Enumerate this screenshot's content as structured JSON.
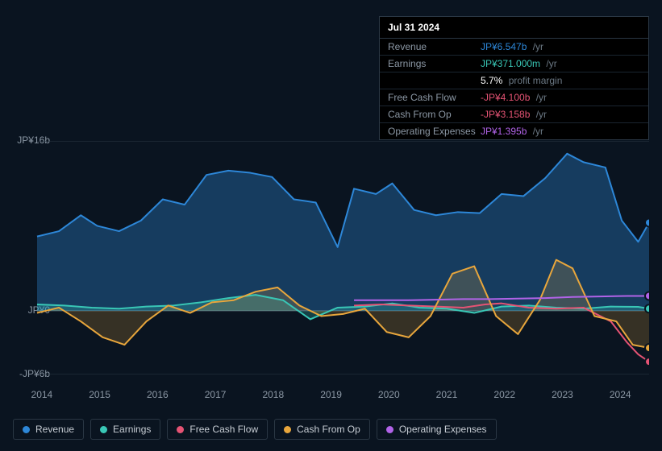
{
  "tooltip": {
    "date": "Jul 31 2024",
    "rows": [
      {
        "label": "Revenue",
        "value": "JP¥6.547b",
        "suffix": "/yr",
        "color": "#2d87d8"
      },
      {
        "label": "Earnings",
        "value": "JP¥371.000m",
        "suffix": "/yr",
        "color": "#39c7b6"
      },
      {
        "label": "",
        "value": "5.7%",
        "suffix": "profit margin",
        "color": "#ffffff"
      },
      {
        "label": "Free Cash Flow",
        "value": "-JP¥4.100b",
        "suffix": "/yr",
        "color": "#e55374"
      },
      {
        "label": "Cash From Op",
        "value": "-JP¥3.158b",
        "suffix": "/yr",
        "color": "#e55374"
      },
      {
        "label": "Operating Expenses",
        "value": "JP¥1.395b",
        "suffix": "/yr",
        "color": "#b163e8"
      }
    ]
  },
  "chart": {
    "type": "line-area",
    "background": "#0a1420",
    "grid_color": "#2a3744",
    "zero_line_color": "#5a6875",
    "ylim": [
      -6,
      16
    ],
    "y_ticks": [
      {
        "v": 16,
        "label": "JP¥16b"
      },
      {
        "v": 0,
        "label": "JP¥0"
      },
      {
        "v": -6,
        "label": "-JP¥6b"
      }
    ],
    "x_labels": [
      "2014",
      "2015",
      "2016",
      "2017",
      "2018",
      "2019",
      "2020",
      "2021",
      "2022",
      "2023",
      "2024"
    ],
    "x_start": 2013.5,
    "x_end": 2024.7,
    "series": [
      {
        "name": "Revenue",
        "color": "#2d87d8",
        "fill": true,
        "fill_opacity": 0.35,
        "data": [
          [
            2013.5,
            7.0
          ],
          [
            2013.9,
            7.5
          ],
          [
            2014.3,
            9.0
          ],
          [
            2014.6,
            8.0
          ],
          [
            2015.0,
            7.5
          ],
          [
            2015.4,
            8.5
          ],
          [
            2015.8,
            10.5
          ],
          [
            2016.2,
            10.0
          ],
          [
            2016.6,
            12.8
          ],
          [
            2017.0,
            13.2
          ],
          [
            2017.4,
            13.0
          ],
          [
            2017.8,
            12.6
          ],
          [
            2018.2,
            10.5
          ],
          [
            2018.6,
            10.2
          ],
          [
            2019.0,
            6.0
          ],
          [
            2019.3,
            11.5
          ],
          [
            2019.7,
            11.0
          ],
          [
            2020.0,
            12.0
          ],
          [
            2020.4,
            9.5
          ],
          [
            2020.8,
            9.0
          ],
          [
            2021.2,
            9.3
          ],
          [
            2021.6,
            9.2
          ],
          [
            2022.0,
            11.0
          ],
          [
            2022.4,
            10.8
          ],
          [
            2022.8,
            12.5
          ],
          [
            2023.2,
            14.8
          ],
          [
            2023.5,
            14.0
          ],
          [
            2023.9,
            13.5
          ],
          [
            2024.2,
            8.5
          ],
          [
            2024.5,
            6.5
          ],
          [
            2024.7,
            8.3
          ]
        ],
        "end_marker": 8.3
      },
      {
        "name": "Earnings",
        "color": "#39c7b6",
        "fill": true,
        "fill_opacity": 0.25,
        "data": [
          [
            2013.5,
            0.6
          ],
          [
            2014.0,
            0.5
          ],
          [
            2014.5,
            0.3
          ],
          [
            2015.0,
            0.2
          ],
          [
            2015.5,
            0.4
          ],
          [
            2016.0,
            0.5
          ],
          [
            2016.5,
            0.8
          ],
          [
            2017.0,
            1.2
          ],
          [
            2017.5,
            1.5
          ],
          [
            2018.0,
            1.0
          ],
          [
            2018.5,
            -0.8
          ],
          [
            2019.0,
            0.3
          ],
          [
            2019.5,
            0.4
          ],
          [
            2020.0,
            0.7
          ],
          [
            2020.5,
            0.3
          ],
          [
            2021.0,
            0.2
          ],
          [
            2021.5,
            -0.2
          ],
          [
            2022.0,
            0.4
          ],
          [
            2022.5,
            0.5
          ],
          [
            2023.0,
            0.3
          ],
          [
            2023.5,
            0.2
          ],
          [
            2024.0,
            0.4
          ],
          [
            2024.5,
            0.37
          ],
          [
            2024.7,
            0.2
          ]
        ],
        "end_marker": 0.2
      },
      {
        "name": "Free Cash Flow",
        "color": "#e55374",
        "fill": false,
        "data": [
          [
            2019.3,
            0.5
          ],
          [
            2019.8,
            0.6
          ],
          [
            2020.3,
            0.5
          ],
          [
            2020.8,
            0.4
          ],
          [
            2021.3,
            0.3
          ],
          [
            2021.7,
            0.6
          ],
          [
            2022.0,
            0.7
          ],
          [
            2022.5,
            0.3
          ],
          [
            2023.0,
            0.2
          ],
          [
            2023.5,
            0.3
          ],
          [
            2024.0,
            -1.0
          ],
          [
            2024.3,
            -3.0
          ],
          [
            2024.5,
            -4.1
          ],
          [
            2024.7,
            -4.8
          ]
        ],
        "end_marker": -4.8
      },
      {
        "name": "Cash From Op",
        "color": "#e8a63c",
        "fill": true,
        "fill_opacity": 0.2,
        "data": [
          [
            2013.5,
            -0.2
          ],
          [
            2013.9,
            0.3
          ],
          [
            2014.3,
            -1.0
          ],
          [
            2014.7,
            -2.5
          ],
          [
            2015.1,
            -3.2
          ],
          [
            2015.5,
            -1.0
          ],
          [
            2015.9,
            0.5
          ],
          [
            2016.3,
            -0.2
          ],
          [
            2016.7,
            0.8
          ],
          [
            2017.1,
            1.0
          ],
          [
            2017.5,
            1.8
          ],
          [
            2017.9,
            2.2
          ],
          [
            2018.3,
            0.5
          ],
          [
            2018.7,
            -0.5
          ],
          [
            2019.1,
            -0.3
          ],
          [
            2019.5,
            0.2
          ],
          [
            2019.9,
            -2.0
          ],
          [
            2020.3,
            -2.5
          ],
          [
            2020.7,
            -0.5
          ],
          [
            2021.1,
            3.5
          ],
          [
            2021.5,
            4.2
          ],
          [
            2021.9,
            -0.5
          ],
          [
            2022.3,
            -2.2
          ],
          [
            2022.7,
            1.0
          ],
          [
            2023.0,
            4.8
          ],
          [
            2023.3,
            4.0
          ],
          [
            2023.7,
            -0.5
          ],
          [
            2024.1,
            -1.0
          ],
          [
            2024.4,
            -3.2
          ],
          [
            2024.7,
            -3.5
          ]
        ],
        "end_marker": -3.5
      },
      {
        "name": "Operating Expenses",
        "color": "#b163e8",
        "fill": false,
        "data": [
          [
            2019.3,
            1.0
          ],
          [
            2019.8,
            1.0
          ],
          [
            2020.3,
            1.0
          ],
          [
            2020.8,
            1.05
          ],
          [
            2021.3,
            1.1
          ],
          [
            2021.8,
            1.1
          ],
          [
            2022.3,
            1.15
          ],
          [
            2022.8,
            1.2
          ],
          [
            2023.3,
            1.3
          ],
          [
            2023.8,
            1.35
          ],
          [
            2024.3,
            1.4
          ],
          [
            2024.7,
            1.4
          ]
        ],
        "end_marker": 1.4
      }
    ]
  },
  "legend": [
    {
      "name": "Revenue",
      "color": "#2d87d8"
    },
    {
      "name": "Earnings",
      "color": "#39c7b6"
    },
    {
      "name": "Free Cash Flow",
      "color": "#e55374"
    },
    {
      "name": "Cash From Op",
      "color": "#e8a63c"
    },
    {
      "name": "Operating Expenses",
      "color": "#b163e8"
    }
  ]
}
